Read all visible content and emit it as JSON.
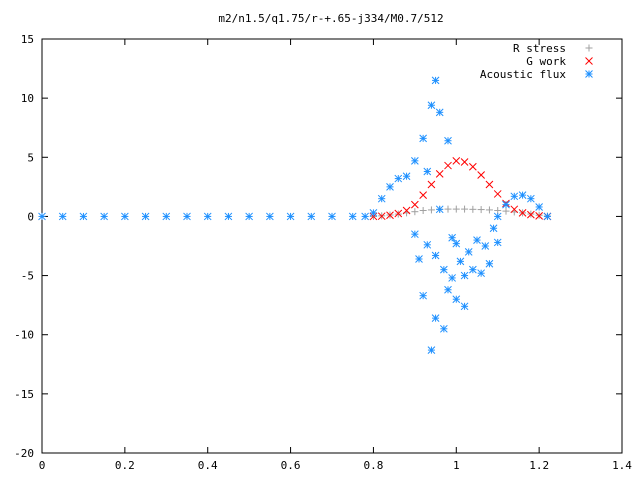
{
  "chart_data": {
    "type": "scatter",
    "title": "m2/n1.5/q1.75/r-+.65-j334/M0.7/512",
    "xlabel": "",
    "ylabel": "",
    "xlim": [
      0,
      1.4
    ],
    "ylim": [
      -20,
      15
    ],
    "xticks": [
      "0",
      "0.2",
      "0.4",
      "0.6",
      "0.8",
      "1",
      "1.2",
      "1.4"
    ],
    "yticks": [
      "15",
      "10",
      "5",
      "0",
      "-5",
      "-10",
      "-15",
      "-20"
    ],
    "grid": false,
    "legend_position": "top-right",
    "series": [
      {
        "name": "R stress",
        "marker": "plus",
        "color": "#a0a0a0",
        "x": [
          0.8,
          0.82,
          0.84,
          0.86,
          0.88,
          0.9,
          0.92,
          0.94,
          0.96,
          0.98,
          1.0,
          1.02,
          1.04,
          1.06,
          1.08,
          1.1,
          1.12,
          1.14,
          1.16,
          1.18,
          1.2,
          1.22
        ],
        "y": [
          0,
          0.05,
          0.12,
          0.2,
          0.3,
          0.4,
          0.5,
          0.55,
          0.6,
          0.62,
          0.62,
          0.62,
          0.6,
          0.58,
          0.55,
          0.5,
          0.45,
          0.38,
          0.3,
          0.2,
          0.1,
          0.03
        ]
      },
      {
        "name": "G work",
        "marker": "x",
        "color": "#ff0000",
        "x": [
          0.8,
          0.82,
          0.84,
          0.86,
          0.88,
          0.9,
          0.92,
          0.94,
          0.96,
          0.98,
          1.0,
          1.02,
          1.04,
          1.06,
          1.08,
          1.1,
          1.12,
          1.14,
          1.16,
          1.18,
          1.2,
          1.22
        ],
        "y": [
          0,
          0.02,
          0.1,
          0.25,
          0.5,
          1.0,
          1.8,
          2.7,
          3.6,
          4.3,
          4.7,
          4.6,
          4.2,
          3.5,
          2.7,
          1.9,
          1.1,
          0.6,
          0.3,
          0.15,
          0.05,
          0.0
        ]
      },
      {
        "name": "Acoustic flux",
        "marker": "asterisk",
        "color": "#1e90ff",
        "x": [
          0.0,
          0.05,
          0.1,
          0.15,
          0.2,
          0.25,
          0.3,
          0.35,
          0.4,
          0.45,
          0.5,
          0.55,
          0.6,
          0.65,
          0.7,
          0.75,
          0.78,
          0.8,
          0.82,
          0.84,
          0.86,
          0.88,
          0.9,
          0.9,
          0.91,
          0.92,
          0.92,
          0.93,
          0.93,
          0.94,
          0.94,
          0.95,
          0.95,
          0.95,
          0.96,
          0.96,
          0.97,
          0.97,
          0.98,
          0.98,
          0.99,
          0.99,
          1.0,
          1.0,
          1.01,
          1.02,
          1.02,
          1.03,
          1.04,
          1.05,
          1.06,
          1.07,
          1.08,
          1.09,
          1.1,
          1.1,
          1.12,
          1.14,
          1.16,
          1.18,
          1.2,
          1.22
        ],
        "y": [
          0,
          0,
          0,
          0,
          0,
          0,
          0,
          0,
          0,
          0,
          0,
          0,
          0,
          0,
          0,
          0,
          0,
          0.3,
          1.5,
          2.5,
          3.2,
          3.4,
          4.7,
          -1.5,
          -3.6,
          6.6,
          -6.7,
          3.8,
          -2.4,
          9.4,
          -11.3,
          11.5,
          -3.3,
          -8.6,
          8.8,
          0.6,
          -4.5,
          -9.5,
          -6.2,
          6.4,
          -1.8,
          -5.2,
          -2.3,
          -7.0,
          -3.8,
          -5.0,
          -7.6,
          -3.0,
          -4.5,
          -2.0,
          -4.8,
          -2.5,
          -4.0,
          -1.0,
          -2.2,
          0.0,
          1.0,
          1.7,
          1.8,
          1.5,
          0.8,
          0.0
        ]
      }
    ]
  }
}
